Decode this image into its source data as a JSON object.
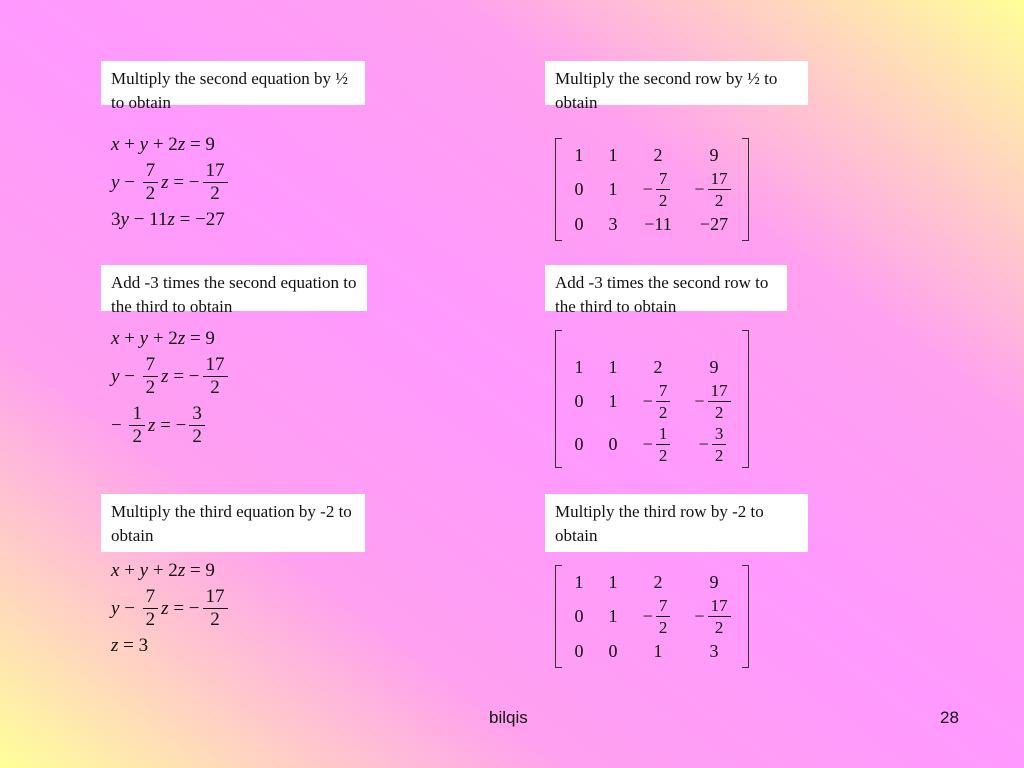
{
  "steps": [
    {
      "eq_label": "Multiply the second equation by ½ to obtain",
      "mat_label": "Multiply the second row by ½ to obtain",
      "equations": [
        [
          {
            "t": "x",
            "i": 1
          },
          {
            "t": " + "
          },
          {
            "t": "y",
            "i": 1
          },
          {
            "t": " + 2"
          },
          {
            "t": "z",
            "i": 1
          },
          {
            "t": " = 9"
          }
        ],
        [
          {
            "t": "y",
            "i": 1
          },
          {
            "t": " − "
          },
          {
            "num": "7",
            "den": "2"
          },
          {
            "t": "z",
            "i": 1
          },
          {
            "t": " = −"
          },
          {
            "num": "17",
            "den": "2"
          }
        ],
        [
          {
            "t": "3"
          },
          {
            "t": "y",
            "i": 1
          },
          {
            "t": " − 11"
          },
          {
            "t": "z",
            "i": 1
          },
          {
            "t": " = −27"
          }
        ]
      ],
      "matrix": [
        [
          "1",
          "1",
          "2",
          "9"
        ],
        [
          "0",
          "1",
          {
            "sign": "−",
            "num": "7",
            "den": "2"
          },
          {
            "sign": "−",
            "num": "17",
            "den": "2"
          }
        ],
        [
          "0",
          "3",
          "−11",
          "−27"
        ]
      ]
    },
    {
      "eq_label": "Add -3 times the second equation to the third to obtain",
      "mat_label": "Add -3 times the second row to the third to obtain",
      "equations": [
        [
          {
            "t": "x",
            "i": 1
          },
          {
            "t": " + "
          },
          {
            "t": "y",
            "i": 1
          },
          {
            "t": " + 2"
          },
          {
            "t": "z",
            "i": 1
          },
          {
            "t": " = 9"
          }
        ],
        [
          {
            "t": "y",
            "i": 1
          },
          {
            "t": " − "
          },
          {
            "num": "7",
            "den": "2"
          },
          {
            "t": "z",
            "i": 1
          },
          {
            "t": " = −"
          },
          {
            "num": "17",
            "den": "2"
          }
        ],
        [
          {
            "t": "− "
          },
          {
            "num": "1",
            "den": "2"
          },
          {
            "t": "z",
            "i": 1
          },
          {
            "t": " = −"
          },
          {
            "num": "3",
            "den": "2"
          }
        ]
      ],
      "matrix": [
        [
          "1",
          "1",
          "2",
          "9"
        ],
        [
          "0",
          "1",
          {
            "sign": "−",
            "num": "7",
            "den": "2"
          },
          {
            "sign": "−",
            "num": "17",
            "den": "2"
          }
        ],
        [
          "0",
          "0",
          {
            "sign": "−",
            "num": "1",
            "den": "2"
          },
          {
            "sign": "−",
            "num": "3",
            "den": "2"
          }
        ]
      ]
    },
    {
      "eq_label": "Multiply the third equation by -2 to obtain",
      "mat_label": "Multiply the third row by -2 to obtain",
      "equations": [
        [
          {
            "t": "x",
            "i": 1
          },
          {
            "t": " + "
          },
          {
            "t": "y",
            "i": 1
          },
          {
            "t": " + 2"
          },
          {
            "t": "z",
            "i": 1
          },
          {
            "t": " = 9"
          }
        ],
        [
          {
            "t": "y",
            "i": 1
          },
          {
            "t": " − "
          },
          {
            "num": "7",
            "den": "2"
          },
          {
            "t": "z",
            "i": 1
          },
          {
            "t": " = −"
          },
          {
            "num": "17",
            "den": "2"
          }
        ],
        [
          {
            "t": "z",
            "i": 1
          },
          {
            "t": " = 3"
          }
        ]
      ],
      "matrix": [
        [
          "1",
          "1",
          "2",
          "9"
        ],
        [
          "0",
          "1",
          {
            "sign": "−",
            "num": "7",
            "den": "2"
          },
          {
            "sign": "−",
            "num": "17",
            "den": "2"
          }
        ],
        [
          "0",
          "0",
          "1",
          "3"
        ]
      ]
    }
  ],
  "footer": {
    "author": "bilqis",
    "page": "28"
  }
}
